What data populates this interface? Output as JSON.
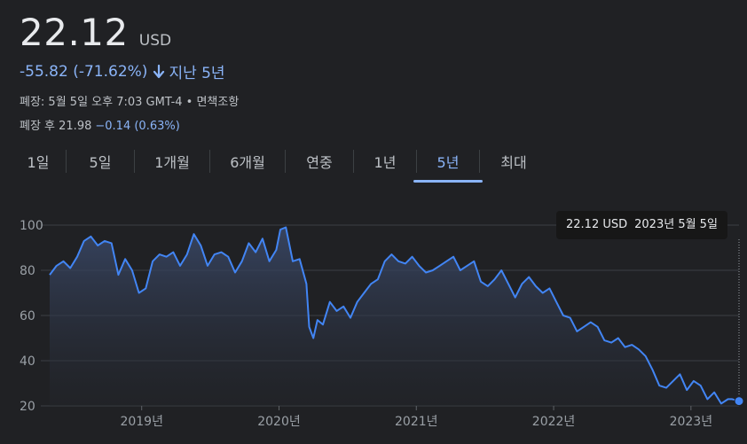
{
  "quote": {
    "price": "22.12",
    "currency": "USD",
    "change": "-55.82 (-71.62%)",
    "period": "지난 5년",
    "close_info": "폐장: 5월 5일 오후 7:03 GMT-4 • 면책조항",
    "after_hours_label": "폐장 후 21.98",
    "after_hours_change": "−0.14 (0.63%)"
  },
  "tabs": [
    {
      "label": "1일"
    },
    {
      "label": "5일"
    },
    {
      "label": "1개월"
    },
    {
      "label": "6개월"
    },
    {
      "label": "연중"
    },
    {
      "label": "1년"
    },
    {
      "label": "5년"
    },
    {
      "label": "최대"
    }
  ],
  "active_tab": "5년",
  "tooltip": {
    "value": "22.12 USD",
    "date": "2023년 5월 5일"
  },
  "colors": {
    "line": "#4285f4",
    "accent": "#8ab4f8",
    "background": "#202124"
  },
  "chart_data": {
    "type": "area",
    "ylim": [
      20,
      100
    ],
    "y_ticks": [
      20,
      40,
      60,
      80,
      100
    ],
    "x_range": [
      2018.33,
      2023.35
    ],
    "x_ticks": [
      {
        "value": 2019,
        "label": "2019년"
      },
      {
        "value": 2020,
        "label": "2020년"
      },
      {
        "value": 2021,
        "label": "2021년"
      },
      {
        "value": 2022,
        "label": "2022년"
      },
      {
        "value": 2023,
        "label": "2023년"
      }
    ],
    "x": [
      2018.33,
      2018.38,
      2018.43,
      2018.48,
      2018.53,
      2018.58,
      2018.63,
      2018.68,
      2018.73,
      2018.78,
      2018.83,
      2018.88,
      2018.93,
      2018.98,
      2019.03,
      2019.08,
      2019.13,
      2019.18,
      2019.23,
      2019.28,
      2019.33,
      2019.38,
      2019.43,
      2019.48,
      2019.53,
      2019.58,
      2019.63,
      2019.68,
      2019.73,
      2019.78,
      2019.83,
      2019.88,
      2019.93,
      2019.98,
      2020.01,
      2020.05,
      2020.1,
      2020.15,
      2020.2,
      2020.22,
      2020.25,
      2020.28,
      2020.32,
      2020.37,
      2020.42,
      2020.47,
      2020.52,
      2020.57,
      2020.62,
      2020.67,
      2020.72,
      2020.77,
      2020.82,
      2020.87,
      2020.92,
      2020.97,
      2021.02,
      2021.07,
      2021.12,
      2021.17,
      2021.22,
      2021.27,
      2021.32,
      2021.37,
      2021.42,
      2021.47,
      2021.52,
      2021.57,
      2021.62,
      2021.67,
      2021.72,
      2021.77,
      2021.82,
      2021.87,
      2021.92,
      2021.97,
      2022.02,
      2022.07,
      2022.12,
      2022.17,
      2022.22,
      2022.27,
      2022.32,
      2022.37,
      2022.42,
      2022.47,
      2022.52,
      2022.57,
      2022.62,
      2022.67,
      2022.72,
      2022.77,
      2022.82,
      2022.87,
      2022.92,
      2022.97,
      2023.02,
      2023.07,
      2023.12,
      2023.17,
      2023.22,
      2023.27,
      2023.3,
      2023.35
    ],
    "values": [
      78,
      82,
      84,
      81,
      86,
      93,
      95,
      91,
      93,
      92,
      78,
      85,
      80,
      70,
      72,
      84,
      87,
      86,
      88,
      82,
      87,
      96,
      91,
      82,
      87,
      88,
      86,
      79,
      84,
      92,
      88,
      94,
      84,
      89,
      98,
      99,
      84,
      85,
      74,
      55,
      50,
      58,
      56,
      66,
      62,
      64,
      59,
      66,
      70,
      74,
      76,
      84,
      87,
      84,
      83,
      86,
      82,
      79,
      80,
      82,
      84,
      86,
      80,
      82,
      84,
      75,
      73,
      76,
      80,
      74,
      68,
      74,
      77,
      73,
      70,
      72,
      66,
      60,
      59,
      53,
      55,
      57,
      55,
      49,
      48,
      50,
      46,
      47,
      45,
      42,
      36,
      29,
      28,
      31,
      34,
      27,
      31,
      29,
      23,
      26,
      21,
      23,
      23,
      22.12
    ]
  }
}
